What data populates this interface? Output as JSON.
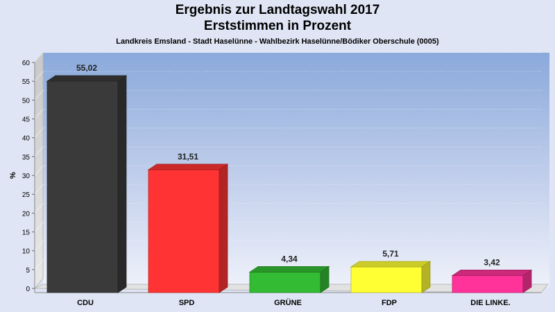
{
  "header": {
    "title_line1": "Ergebnis zur Landtagswahl 2017",
    "title_line2": "Erststimmen in Prozent",
    "subtitle": "Landkreis Emsland - Stadt Haselünne - Wahlbezirk Haselünne/Bödiker Oberschule (0005)"
  },
  "chart_data": {
    "type": "bar",
    "title": "Ergebnis zur Landtagswahl 2017 Erststimmen in Prozent",
    "subtitle": "Landkreis Emsland - Stadt Haselünne - Wahlbezirk Haselünne/Bödiker Oberschule (0005)",
    "xlabel": "",
    "ylabel": "%",
    "ylim": [
      0,
      60
    ],
    "yticks": [
      0,
      5,
      10,
      15,
      20,
      25,
      30,
      35,
      40,
      45,
      50,
      55,
      60
    ],
    "categories": [
      "CDU",
      "SPD",
      "GRÜNE",
      "FDP",
      "DIE LINKE."
    ],
    "values": [
      55.02,
      31.51,
      4.34,
      5.71,
      3.42
    ],
    "value_labels": [
      "55,02",
      "31,51",
      "4,34",
      "5,71",
      "3,42"
    ],
    "colors": [
      "#3a3a3a",
      "#ff3333",
      "#33bb33",
      "#ffff33",
      "#ff3399"
    ],
    "grid": true
  }
}
